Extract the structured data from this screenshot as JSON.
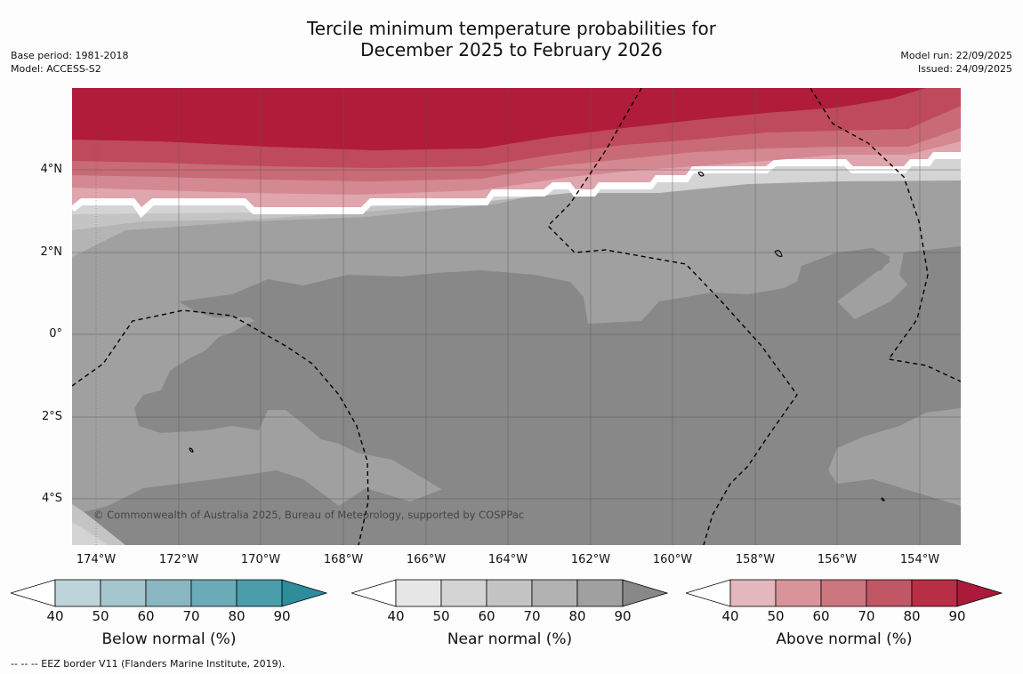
{
  "title_line1": "Tercile minimum temperature probabilities for",
  "title_line2": "December 2025 to February 2026",
  "meta": {
    "base_period": "Base period: 1981-2018",
    "model": "Model: ACCESS-S2",
    "model_run": "Model run: 22/09/2025",
    "issued": "Issued: 24/09/2025"
  },
  "lat_labels": [
    "4°N",
    "2°N",
    "0°",
    "2°S",
    "4°S"
  ],
  "lon_labels": [
    "174°W",
    "172°W",
    "170°W",
    "168°W",
    "166°W",
    "164°W",
    "162°W",
    "160°W",
    "158°W",
    "156°W",
    "154°W"
  ],
  "copyright": "© Commonwealth of Australia 2025, Bureau of Meteorology, supported by COSPPac",
  "colorbars": [
    {
      "name": "below",
      "label": "Below normal (%)",
      "ticks": [
        "40",
        "50",
        "60",
        "70",
        "80",
        "90"
      ],
      "colors": [
        "#ffffff",
        "#bdd4da",
        "#a5c5cc",
        "#8ab6c1",
        "#6aabb8",
        "#4a9dab",
        "#2e8c9b"
      ]
    },
    {
      "name": "near",
      "label": "Near normal (%)",
      "ticks": [
        "40",
        "50",
        "60",
        "70",
        "80",
        "90"
      ],
      "colors": [
        "#ffffff",
        "#e6e6e6",
        "#d4d4d4",
        "#c4c4c4",
        "#b2b2b2",
        "#a0a0a0",
        "#888888"
      ]
    },
    {
      "name": "above",
      "label": "Above normal (%)",
      "ticks": [
        "40",
        "50",
        "60",
        "70",
        "80",
        "90"
      ],
      "colors": [
        "#ffffff",
        "#e3b7bc",
        "#d8939b",
        "#cc7780",
        "#c15664",
        "#b82e45",
        "#ac1a3a"
      ]
    }
  ],
  "footnote": "--  --  -- EEZ border V11 (Flanders Marine Institute, 2019).",
  "colors": {
    "near_50": "#d4d4d4",
    "near_60": "#c4c4c4",
    "near_80": "#a0a0a0",
    "near_90": "#888888",
    "above_50": "#dfa6ae",
    "above_60": "#d48891",
    "above_70": "#c96b76",
    "above_80": "#be4a5b",
    "above_90": "#b01c3a"
  }
}
